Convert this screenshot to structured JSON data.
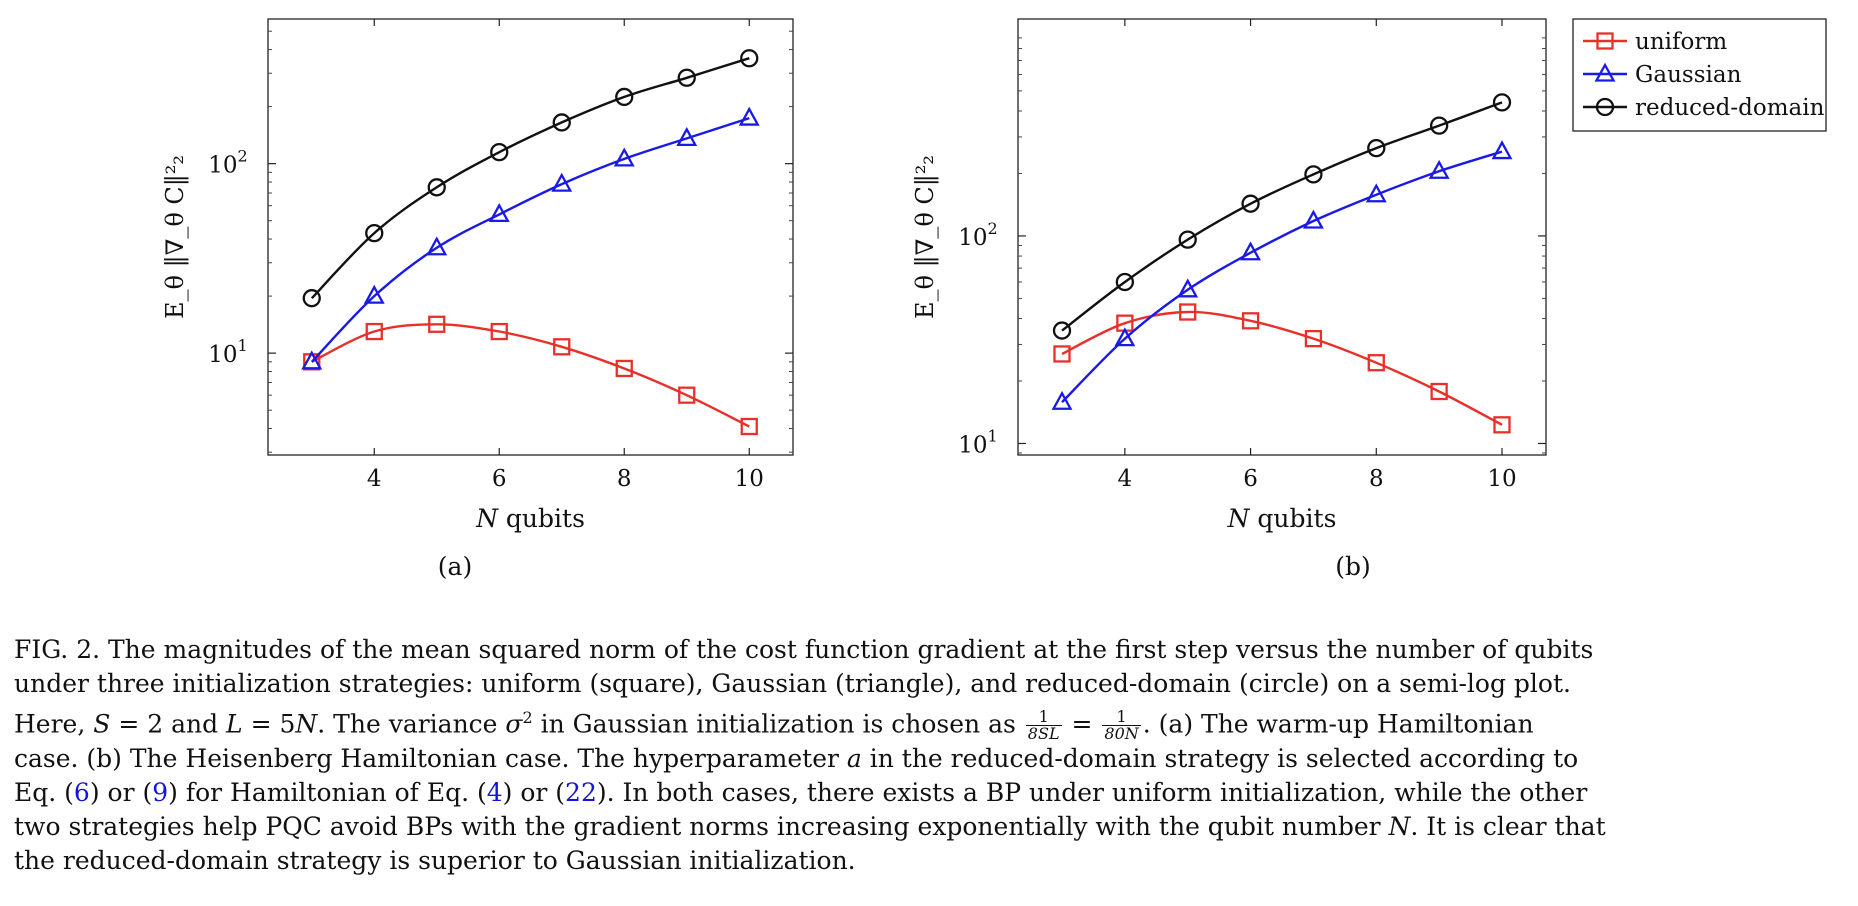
{
  "chart_data": [
    {
      "type": "line",
      "panel_label": "(a)",
      "xlabel_var": "N",
      "xlabel_text": "qubits",
      "ylabel": "E_θ ‖∇_θ C‖²₂",
      "yscale": "log",
      "xlim": [
        2.3,
        10.7
      ],
      "ylim": [
        2.9,
        580
      ],
      "x_ticks": [
        4,
        6,
        8,
        10
      ],
      "y_ticks": [
        {
          "value": 10,
          "base": "10",
          "exp": "1"
        },
        {
          "value": 100,
          "base": "10",
          "exp": "2"
        }
      ],
      "x": [
        3,
        4,
        5,
        6,
        7,
        8,
        9,
        10
      ],
      "series": [
        {
          "name": "uniform",
          "marker": "square",
          "color": "#e8302a",
          "values": [
            9.0,
            13.0,
            14.2,
            13.0,
            10.8,
            8.3,
            6.0,
            4.1
          ]
        },
        {
          "name": "Gaussian",
          "marker": "triangle",
          "color": "#1a1ae6",
          "values": [
            9.0,
            20.0,
            36.0,
            54.0,
            78.0,
            106.0,
            136.0,
            174.0
          ]
        },
        {
          "name": "reduced-domain",
          "marker": "circle",
          "color": "#111111",
          "values": [
            19.5,
            43.0,
            75.0,
            115.0,
            165.0,
            225.0,
            284.0,
            360.0
          ]
        }
      ]
    },
    {
      "type": "line",
      "panel_label": "(b)",
      "xlabel_var": "N",
      "xlabel_text": "qubits",
      "ylabel": "E_θ ‖∇_θ C‖²₂",
      "yscale": "log",
      "xlim": [
        2.3,
        10.7
      ],
      "ylim": [
        8.8,
        1110
      ],
      "x_ticks": [
        4,
        6,
        8,
        10
      ],
      "y_ticks": [
        {
          "value": 10,
          "base": "10",
          "exp": "1"
        },
        {
          "value": 100,
          "base": "10",
          "exp": "2"
        }
      ],
      "x": [
        3,
        4,
        5,
        6,
        7,
        8,
        9,
        10
      ],
      "legend_position": "outside-top-right",
      "series": [
        {
          "name": "uniform",
          "marker": "square",
          "color": "#e8302a",
          "values": [
            27.0,
            38.0,
            43.0,
            39.0,
            32.0,
            24.5,
            17.8,
            12.3
          ]
        },
        {
          "name": "Gaussian",
          "marker": "triangle",
          "color": "#1a1ae6",
          "values": [
            15.8,
            32.0,
            55.0,
            83.0,
            118.0,
            158.0,
            205.0,
            255.0
          ]
        },
        {
          "name": "reduced-domain",
          "marker": "circle",
          "color": "#111111",
          "values": [
            35.0,
            60.0,
            96.0,
            143.0,
            198.0,
            265.0,
            340.0,
            440.0
          ]
        }
      ]
    }
  ],
  "caption": {
    "lines": [
      [
        "FIG. 2. The magnitudes of the mean squared norm of the cost function gradient at the first step versus the number of qubits"
      ],
      [
        "under three initialization strategies: uniform (square), Gaussian (triangle), and reduced-domain (circle) on a semi-log plot."
      ],
      [
        "Here, ",
        {
          "m": "S"
        },
        " = 2 and ",
        {
          "m": "L"
        },
        " = 5",
        {
          "m": "N"
        },
        ". The variance ",
        {
          "m": "σ"
        },
        {
          "sup": "2"
        },
        " in Gaussian initialization is chosen as ",
        {
          "frac": [
            "1",
            "8SL"
          ]
        },
        " = ",
        {
          "frac": [
            "1",
            "80N"
          ]
        },
        ". (a) The warm-up Hamiltonian"
      ],
      [
        "case. (b) The Heisenberg Hamiltonian case. The hyperparameter ",
        {
          "m": "a"
        },
        " in the reduced-domain strategy is selected according to"
      ],
      [
        "Eq. (",
        {
          "a": "6"
        },
        ") or (",
        {
          "a": "9"
        },
        ") for Hamiltonian of Eq. (",
        {
          "a": "4"
        },
        ") or (",
        {
          "a": "22"
        },
        "). In both cases, there exists a BP under uniform initialization, while the other"
      ],
      [
        "two strategies help PQC avoid BPs with the gradient norms increasing exponentially with the qubit number ",
        {
          "m": "N"
        },
        ". It is clear that"
      ],
      [
        "the reduced-domain strategy is superior to Gaussian initialization."
      ]
    ]
  }
}
